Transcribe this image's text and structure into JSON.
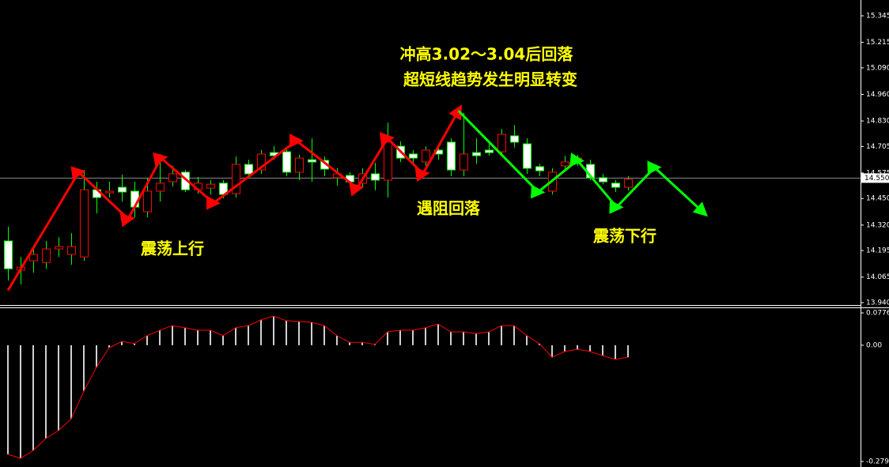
{
  "chart_data": [
    {
      "type": "candlestick",
      "open": [
        14.242,
        14.099,
        14.145,
        14.137,
        14.203,
        14.176,
        14.164,
        14.493,
        14.478,
        14.505,
        14.486,
        14.385,
        14.486,
        14.532,
        14.579,
        14.493,
        14.501,
        14.525,
        14.474,
        14.617,
        14.59,
        14.675,
        14.679,
        14.579,
        14.64,
        14.637,
        14.552,
        14.563,
        14.525,
        14.571,
        14.54,
        14.706,
        14.668,
        14.629,
        14.687,
        14.726,
        14.59,
        14.675,
        14.687,
        14.679,
        14.757,
        14.718,
        14.606,
        14.486,
        14.61,
        14.629,
        14.617,
        14.552,
        14.525,
        14.505
      ],
      "high": [
        14.312,
        14.164,
        14.222,
        14.242,
        14.261,
        14.28,
        14.59,
        14.532,
        14.532,
        14.567,
        14.532,
        14.55,
        14.668,
        14.61,
        14.59,
        14.556,
        14.54,
        14.54,
        14.656,
        14.64,
        14.687,
        14.706,
        14.7,
        14.664,
        14.745,
        14.656,
        14.6,
        14.579,
        14.598,
        14.625,
        14.822,
        14.73,
        14.687,
        14.706,
        14.7,
        14.745,
        14.87,
        14.745,
        14.72,
        14.79,
        14.81,
        14.745,
        14.62,
        14.598,
        14.66,
        14.664,
        14.64,
        14.571,
        14.54,
        14.56
      ],
      "low": [
        14.048,
        14.029,
        14.087,
        14.106,
        14.164,
        14.126,
        14.145,
        14.377,
        14.455,
        14.435,
        14.358,
        14.358,
        14.435,
        14.509,
        14.482,
        14.474,
        14.47,
        14.451,
        14.455,
        14.548,
        14.571,
        14.64,
        14.56,
        14.54,
        14.532,
        14.56,
        14.513,
        14.509,
        14.501,
        14.49,
        14.455,
        14.629,
        14.61,
        14.61,
        14.64,
        14.56,
        14.56,
        14.62,
        14.66,
        14.668,
        14.7,
        14.571,
        14.56,
        14.47,
        14.59,
        14.61,
        14.54,
        14.52,
        14.482,
        14.49
      ],
      "close": [
        14.106,
        14.114,
        14.176,
        14.203,
        14.215,
        14.215,
        14.493,
        14.455,
        14.486,
        14.482,
        14.408,
        14.486,
        14.525,
        14.571,
        14.493,
        14.525,
        14.52,
        14.47,
        14.617,
        14.571,
        14.668,
        14.66,
        14.579,
        14.648,
        14.629,
        14.594,
        14.571,
        14.532,
        14.571,
        14.54,
        14.726,
        14.648,
        14.648,
        14.687,
        14.668,
        14.59,
        14.668,
        14.66,
        14.675,
        14.764,
        14.726,
        14.598,
        14.586,
        14.579,
        14.629,
        14.648,
        14.552,
        14.532,
        14.505,
        14.544
      ],
      "bull_color": "#000000",
      "bull_outline": "#ff0000",
      "bear_color": "#ffffff",
      "wick_color": "#00ff00",
      "ylim": [
        13.94,
        15.345
      ],
      "yticks": [
        15.345,
        15.215,
        {
          "value": 15.09,
          "label": "15.090"
        },
        {
          "value": 14.96,
          "label": "14.960"
        },
        {
          "value": 14.83,
          "label": "14.830"
        },
        14.705,
        14.575,
        {
          "value": 14.45,
          "label": "14.450"
        },
        {
          "value": 14.32,
          "label": "14.320"
        },
        14.195,
        14.065,
        {
          "value": 13.94,
          "label": "13.940"
        }
      ],
      "current_price": {
        "value": 14.55,
        "label": "14.550"
      },
      "zigzag": [
        {
          "color": "#ff0000",
          "x": [
            0,
            5.6,
            9.5,
            12.1,
            16.25,
            22.8,
            27.6,
            30,
            32.8,
            35.6
          ],
          "y": [
            14.0,
            14.579,
            14.35,
            14.648,
            14.428,
            14.733,
            14.501,
            14.745,
            14.571,
            14.88
          ]
        },
        {
          "color": "#00ff00",
          "x": [
            35.6,
            41.9,
            45,
            48.1,
            51.1,
            54.9
          ],
          "y": [
            14.88,
            14.482,
            14.637,
            14.408,
            14.602,
            14.385
          ]
        }
      ],
      "annotations": [
        "冲高3.02～3.04后回落",
        "超短线趋势发生明显转变",
        "震荡上行",
        "遇阻回落",
        "震荡下行"
      ]
    },
    {
      "type": "bar",
      "values": [
        -0.262,
        -0.272,
        -0.253,
        -0.224,
        -0.205,
        -0.177,
        -0.11,
        -0.053,
        -0.006,
        0.009,
        0.004,
        0.023,
        0.036,
        0.047,
        0.042,
        0.036,
        0.036,
        0.023,
        0.042,
        0.047,
        0.061,
        0.07,
        0.059,
        0.057,
        0.055,
        0.047,
        0.023,
        0.007,
        0.007,
        0.002,
        0.032,
        0.036,
        0.036,
        0.042,
        0.051,
        0.032,
        0.032,
        0.028,
        0.032,
        0.047,
        0.047,
        0.023,
        0.004,
        -0.029,
        -0.015,
        -0.01,
        -0.015,
        -0.025,
        -0.034,
        -0.029
      ],
      "color": "#d0d0d0",
      "line_color": "#ff0000",
      "ylim": [
        -0.2793,
        0.0776
      ],
      "yticks": [
        0.0776,
        {
          "value": 0,
          "label": "0.00"
        },
        -0.2793
      ]
    }
  ]
}
